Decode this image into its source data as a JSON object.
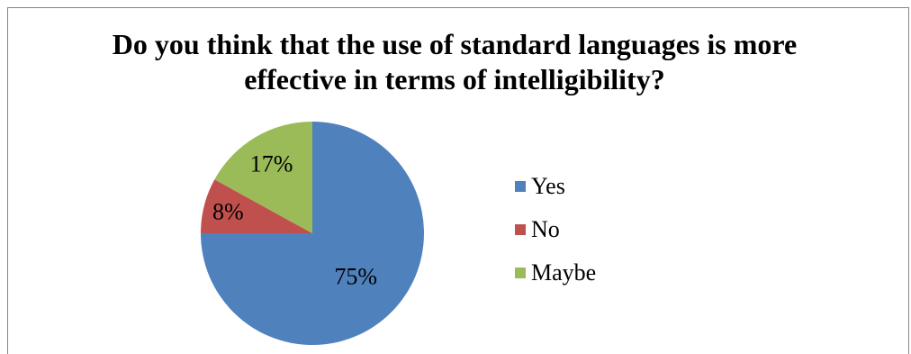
{
  "chart_data": {
    "type": "pie",
    "title_lines": [
      "Do you think that the use of standard languages is more",
      "effective in terms of intelligibility?"
    ],
    "categories": [
      "Yes",
      "No",
      "Maybe"
    ],
    "values": [
      75,
      8,
      17
    ],
    "data_labels": [
      "75%",
      "8%",
      "17%"
    ],
    "colors": [
      "#4F81BD",
      "#C0504D",
      "#9BBB59"
    ],
    "legend_position": "right",
    "start_angle": "12 o'clock",
    "direction": "clockwise"
  }
}
